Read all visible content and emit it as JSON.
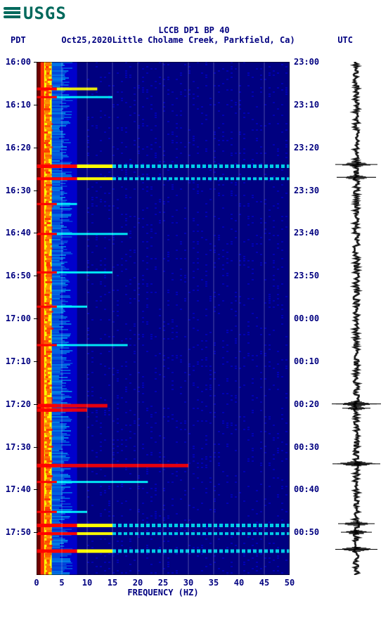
{
  "logo": {
    "text": "USGS"
  },
  "title": "LCCB DP1 BP 40",
  "subtitle_left": "PDT",
  "subtitle_date": "Oct25,2020",
  "subtitle_station": "Little Cholame Creek, Parkfield, Ca)",
  "subtitle_right": "UTC",
  "xlabel": "FREQUENCY (HZ)",
  "spectrogram": {
    "type": "spectrogram",
    "xlim": [
      0,
      50
    ],
    "xtick_step": 5,
    "xticks": [
      0,
      5,
      10,
      15,
      20,
      25,
      30,
      35,
      40,
      45,
      50
    ],
    "left_time_start": "16:00",
    "left_time_end": "18:00",
    "left_ticks": [
      "16:00",
      "16:10",
      "16:20",
      "16:30",
      "16:40",
      "16:50",
      "17:00",
      "17:10",
      "17:20",
      "17:30",
      "17:40",
      "17:50"
    ],
    "right_ticks": [
      "23:00",
      "23:10",
      "23:20",
      "23:30",
      "23:40",
      "23:50",
      "00:00",
      "00:10",
      "00:20",
      "00:30",
      "00:40",
      "00:50"
    ],
    "grid_color": "#e0e0e0",
    "duration_min": 120,
    "colormap": {
      "low": "#000080",
      "mid_low": "#0000ff",
      "mid": "#00ffff",
      "mid_high": "#ffff00",
      "high": "#ff0000",
      "very_high": "#a00000"
    },
    "low_freq_band": {
      "start_hz": 0,
      "end_hz": 4,
      "avg_color": "#ff3000"
    },
    "mid_freq_band": {
      "start_hz": 4,
      "end_hz": 10,
      "avg_color": "#0060ff"
    },
    "high_freq_band": {
      "start_hz": 10,
      "end_hz": 50,
      "avg_color": "#0000b0"
    },
    "events": [
      {
        "time_min": 6,
        "min_hz": 2,
        "max_hz": 12,
        "intensity": "high"
      },
      {
        "time_min": 8,
        "min_hz": 2,
        "max_hz": 15,
        "intensity": "mid"
      },
      {
        "time_min": 24,
        "min_hz": 0,
        "max_hz": 50,
        "intensity": "very_high"
      },
      {
        "time_min": 27,
        "min_hz": 0,
        "max_hz": 50,
        "intensity": "high"
      },
      {
        "time_min": 33,
        "min_hz": 2,
        "max_hz": 8,
        "intensity": "mid"
      },
      {
        "time_min": 40,
        "min_hz": 4,
        "max_hz": 18,
        "intensity": "mid"
      },
      {
        "time_min": 49,
        "min_hz": 2,
        "max_hz": 15,
        "intensity": "mid"
      },
      {
        "time_min": 57,
        "min_hz": 2,
        "max_hz": 10,
        "intensity": "mid"
      },
      {
        "time_min": 66,
        "min_hz": 4,
        "max_hz": 18,
        "intensity": "mid"
      },
      {
        "time_min": 80,
        "min_hz": 0,
        "max_hz": 14,
        "intensity": "very_high"
      },
      {
        "time_min": 81,
        "min_hz": 2,
        "max_hz": 10,
        "intensity": "very_high"
      },
      {
        "time_min": 94,
        "min_hz": 0,
        "max_hz": 30,
        "intensity": "very_high"
      },
      {
        "time_min": 98,
        "min_hz": 2,
        "max_hz": 22,
        "intensity": "mid"
      },
      {
        "time_min": 105,
        "min_hz": 2,
        "max_hz": 10,
        "intensity": "mid"
      },
      {
        "time_min": 108,
        "min_hz": 0,
        "max_hz": 50,
        "intensity": "very_high"
      },
      {
        "time_min": 110,
        "min_hz": 0,
        "max_hz": 50,
        "intensity": "high"
      },
      {
        "time_min": 114,
        "min_hz": 0,
        "max_hz": 50,
        "intensity": "very_high"
      }
    ]
  },
  "seismogram": {
    "type": "waveform",
    "color": "#000000",
    "baseline_amp": 4,
    "events": [
      {
        "time_min": 24,
        "amp": 30
      },
      {
        "time_min": 27,
        "amp": 28
      },
      {
        "time_min": 80,
        "amp": 35
      },
      {
        "time_min": 81,
        "amp": 20
      },
      {
        "time_min": 94,
        "amp": 34
      },
      {
        "time_min": 108,
        "amp": 26
      },
      {
        "time_min": 110,
        "amp": 22
      },
      {
        "time_min": 114,
        "amp": 30
      }
    ]
  },
  "colors": {
    "text": "#000080",
    "background": "#ffffff",
    "logo": "#00695c"
  },
  "fonts": {
    "tick_size": 12,
    "title_size": 12
  }
}
